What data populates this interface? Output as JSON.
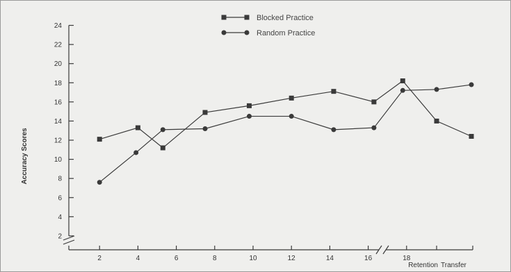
{
  "chart_data": {
    "type": "line",
    "title": "",
    "ylabel": "Accuracy Scores",
    "xlabel": "",
    "ylim": [
      0,
      24
    ],
    "y_ticks": [
      2,
      4,
      6,
      8,
      10,
      12,
      14,
      16,
      18,
      20,
      22,
      24
    ],
    "x_ticks": [
      "2",
      "4",
      "6",
      "8",
      "10",
      "12",
      "14",
      "16",
      "18"
    ],
    "x_extra_labels": [
      "Retention",
      "Transfer"
    ],
    "axis_breaks": [
      "y-axis near 0",
      "x-axis between 18 and Retention"
    ],
    "legend_position": "top-center",
    "colors": {
      "line": "#3a3a3a",
      "background": "#efefed"
    },
    "series": [
      {
        "name": "Blocked Practice",
        "marker": "square",
        "practice": [
          [
            2,
            12.1
          ],
          [
            4,
            13.3
          ],
          [
            5.3,
            11.2
          ],
          [
            7.5,
            14.9
          ],
          [
            9.8,
            15.6
          ],
          [
            12,
            16.4
          ],
          [
            14.2,
            17.1
          ],
          [
            16.3,
            16.0
          ],
          [
            17.8,
            18.2
          ]
        ],
        "retention": 14.0,
        "transfer": 12.4
      },
      {
        "name": "Random Practice",
        "marker": "circle",
        "practice": [
          [
            2,
            7.6
          ],
          [
            3.9,
            10.7
          ],
          [
            5.3,
            13.1
          ],
          [
            7.5,
            13.2
          ],
          [
            9.8,
            14.5
          ],
          [
            12,
            14.5
          ],
          [
            14.2,
            13.1
          ],
          [
            16.3,
            13.3
          ],
          [
            17.8,
            17.2
          ]
        ],
        "retention": 17.3,
        "transfer": 17.8
      }
    ]
  }
}
